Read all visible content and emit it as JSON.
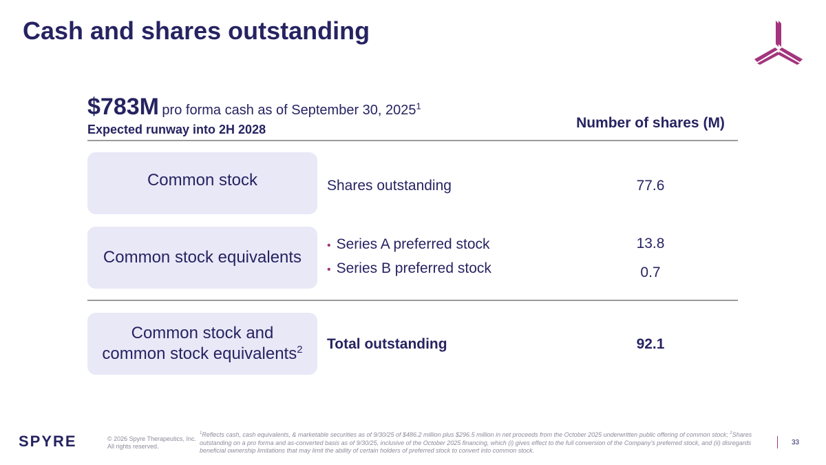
{
  "slide": {
    "title": "Cash and shares outstanding",
    "page_number": "33"
  },
  "summary": {
    "cash_amount": "$783M",
    "cash_description": "pro forma cash as of September 30, 2025",
    "cash_footnote_ref": "1",
    "runway": "Expected runway into 2H 2028",
    "shares_header": "Number of shares (M)"
  },
  "rows": {
    "common": {
      "label": "Common stock",
      "detail": "Shares outstanding",
      "value": "77.6"
    },
    "equivalents": {
      "label": "Common stock equivalents",
      "items": [
        {
          "detail": "Series A preferred stock",
          "value": "13.8"
        },
        {
          "detail": "Series B preferred stock",
          "value": "0.7"
        }
      ]
    },
    "total": {
      "label_line1": "Common stock and",
      "label_line2": "common stock equivalents",
      "label_footnote_ref": "2",
      "detail": "Total outstanding",
      "value": "92.1"
    }
  },
  "footer": {
    "brand": "SPYRE",
    "copyright_line1": "© 2026 Spyre Therapeutics, Inc.",
    "copyright_line2": "All rights reserved.",
    "footnote_1_ref": "1",
    "footnote_1": "Reflects cash, cash equivalents, & marketable securities as of 9/30/25 of $486.2 million plus $296.5 million in net proceeds from the October 2025 underwritten public offering of common stock; ",
    "footnote_2_ref": "2",
    "footnote_2": "Shares outstanding on a pro forma and as-converted basis as of 9/30/25, inclusive of the October 2025 financing, which (i) gives effect to the full conversion of the Company’s preferred stock, and (ii) disregards beneficial ownership limitations that may limit the ability of certain holders of preferred stock to convert into common stock."
  },
  "colors": {
    "navy": "#262361",
    "magenta": "#a3347d",
    "pill": "#e9e8f7",
    "rule": "#9a9a9a"
  }
}
